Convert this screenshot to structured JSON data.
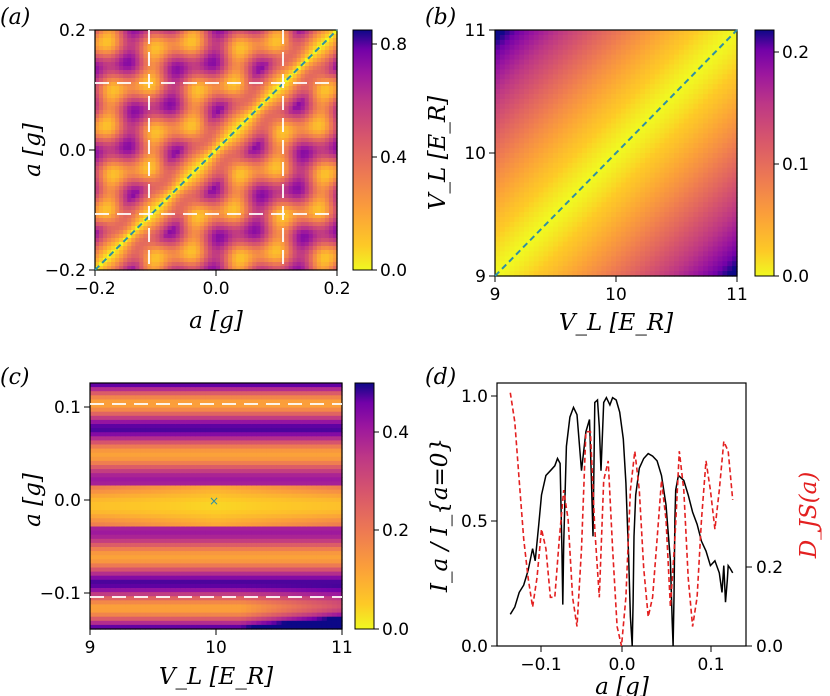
{
  "chart_data": [
    {
      "panel": "(a)",
      "type": "heatmap",
      "xlabel": "a [g]",
      "ylabel": "a [g]",
      "xlim": [
        -0.2,
        0.2
      ],
      "ylim": [
        -0.2,
        0.2
      ],
      "xticks": [
        "−0.2",
        "0.0",
        "0.2"
      ],
      "yticks": [
        "−0.2",
        "0.0",
        "0.2"
      ],
      "colormap": "plasma_r",
      "colorbar": {
        "min": 0.0,
        "max": 0.85,
        "ticks": [
          "0.0",
          "0.4",
          "0.8"
        ]
      },
      "dashed_lines": [
        -0.11,
        0.11
      ],
      "diagonal_line": true
    },
    {
      "panel": "(b)",
      "type": "heatmap",
      "xlabel": "V_L [E_R]",
      "ylabel": "V_L [E_R]",
      "xlim": [
        9,
        11
      ],
      "ylim": [
        9,
        11
      ],
      "xticks": [
        "9",
        "10",
        "11"
      ],
      "yticks": [
        "9",
        "10",
        "11"
      ],
      "colormap": "plasma_r",
      "colorbar": {
        "min": 0.0,
        "max": 0.22,
        "ticks": [
          "0.0",
          "0.1",
          "0.2"
        ]
      },
      "diagonal_line": true
    },
    {
      "panel": "(c)",
      "type": "heatmap",
      "xlabel": "V_L [E_R]",
      "ylabel": "a [g]",
      "xlim": [
        9,
        11
      ],
      "ylim": [
        -0.125,
        0.125
      ],
      "xticks": [
        "9",
        "10",
        "11"
      ],
      "yticks": [
        "−0.1",
        "0.0",
        "0.1"
      ],
      "colormap": "plasma_r",
      "colorbar": {
        "min": 0.0,
        "max": 0.5,
        "ticks": [
          "0.0",
          "0.2",
          "0.4"
        ]
      },
      "dashed_lines": [
        -0.105,
        0.105
      ],
      "marker": {
        "x": 10,
        "y": 0.0,
        "symbol": "×"
      }
    },
    {
      "panel": "(d)",
      "type": "line",
      "xlabel": "a [g]",
      "ylabel_left": "I_a / I_{a=0}",
      "ylabel_right": "D_JS(a)",
      "xlim": [
        -0.14,
        0.14
      ],
      "ylim_left": [
        0.0,
        1.08
      ],
      "ylim_right": [
        0.0,
        0.27
      ],
      "xticks": [
        "−0.1",
        "0.0",
        "0.1"
      ],
      "yticks_left": [
        "0.0",
        "0.5",
        "1.0"
      ],
      "yticks_right": [
        "0.0",
        "0.2"
      ],
      "series": [
        {
          "axis": "left",
          "style": "solid",
          "color": "#000000",
          "x": [
            -0.125,
            -0.12,
            -0.115,
            -0.11,
            -0.105,
            -0.1,
            -0.097,
            -0.093,
            -0.09,
            -0.085,
            -0.08,
            -0.075,
            -0.072,
            -0.069,
            -0.067,
            -0.066,
            -0.065,
            -0.062,
            -0.058,
            -0.054,
            -0.05,
            -0.045,
            -0.04,
            -0.036,
            -0.034,
            -0.032,
            -0.03,
            -0.027,
            -0.025,
            -0.023,
            -0.02,
            -0.017,
            -0.013,
            -0.01,
            -0.006,
            -0.002,
            0.002,
            0.005,
            0.008,
            0.01,
            0.012,
            0.013,
            0.014,
            0.016,
            0.02,
            0.025,
            0.03,
            0.035,
            0.04,
            0.045,
            0.05,
            0.055,
            0.057,
            0.058,
            0.059,
            0.06,
            0.061,
            0.064,
            0.07,
            0.075,
            0.08,
            0.085,
            0.09,
            0.095,
            0.1,
            0.105,
            0.11,
            0.113,
            0.115,
            0.117,
            0.119,
            0.12,
            0.122,
            0.125
          ],
          "y": [
            0.13,
            0.16,
            0.22,
            0.25,
            0.31,
            0.4,
            0.35,
            0.5,
            0.62,
            0.7,
            0.72,
            0.74,
            0.77,
            0.75,
            0.4,
            0.17,
            0.42,
            0.82,
            0.94,
            0.98,
            0.95,
            0.72,
            0.88,
            0.93,
            0.7,
            0.45,
            1.0,
            1.01,
            0.9,
            0.72,
            1.0,
            1.02,
            0.99,
            1.02,
            1.01,
            0.96,
            0.85,
            0.67,
            0.37,
            0.12,
            0.0,
            0.18,
            0.45,
            0.62,
            0.73,
            0.77,
            0.79,
            0.78,
            0.76,
            0.7,
            0.58,
            0.35,
            0.1,
            0.0,
            0.2,
            0.52,
            0.64,
            0.7,
            0.68,
            0.62,
            0.55,
            0.5,
            0.43,
            0.39,
            0.33,
            0.35,
            0.3,
            0.22,
            0.33,
            0.18,
            0.27,
            0.33,
            0.32,
            0.3
          ]
        },
        {
          "axis": "right",
          "style": "dashed",
          "color": "#e32020",
          "x": [
            -0.125,
            -0.12,
            -0.115,
            -0.11,
            -0.105,
            -0.1,
            -0.095,
            -0.09,
            -0.085,
            -0.08,
            -0.075,
            -0.07,
            -0.065,
            -0.06,
            -0.055,
            -0.05,
            -0.045,
            -0.04,
            -0.035,
            -0.03,
            -0.025,
            -0.02,
            -0.015,
            -0.01,
            -0.005,
            0.0,
            0.005,
            0.01,
            0.015,
            0.02,
            0.025,
            0.03,
            0.035,
            0.04,
            0.045,
            0.05,
            0.055,
            0.06,
            0.065,
            0.07,
            0.075,
            0.08,
            0.085,
            0.09,
            0.095,
            0.1,
            0.105,
            0.11,
            0.115,
            0.12,
            0.125
          ],
          "y": [
            0.26,
            0.23,
            0.17,
            0.11,
            0.07,
            0.04,
            0.07,
            0.12,
            0.1,
            0.05,
            0.05,
            0.11,
            0.16,
            0.13,
            0.05,
            0.02,
            0.1,
            0.22,
            0.22,
            0.12,
            0.05,
            0.17,
            0.19,
            0.1,
            0.02,
            0.0,
            0.05,
            0.16,
            0.2,
            0.16,
            0.08,
            0.03,
            0.05,
            0.11,
            0.17,
            0.13,
            0.04,
            0.11,
            0.2,
            0.16,
            0.07,
            0.02,
            0.05,
            0.13,
            0.19,
            0.16,
            0.12,
            0.16,
            0.21,
            0.2,
            0.15
          ]
        }
      ]
    }
  ]
}
